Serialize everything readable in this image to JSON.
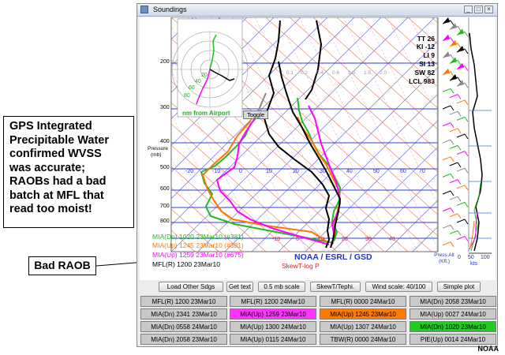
{
  "window": {
    "title": "Soundings"
  },
  "callout": {
    "lines": [
      "GPS Integrated",
      "Precipitable Water",
      "confirmed WVSS",
      "was accurate;",
      "RAOBs had a bad",
      "batch at MFL that",
      "read too moist!"
    ]
  },
  "annotation": {
    "bad_raob_label": "Bad RAOB"
  },
  "plot": {
    "pressure_label": "Pressure",
    "pressure_unit": "(mb)",
    "pressure_ticks": [
      "200",
      "300",
      "400",
      "500",
      "600",
      "700",
      "800"
    ],
    "temp_ticks": [
      "-20",
      "-10",
      "0",
      "10",
      "20",
      "30",
      "40",
      "50",
      "60",
      "70",
      "80"
    ],
    "temp_ticks_bottom": [
      "-10",
      "0",
      "10",
      "20",
      "30",
      "40"
    ],
    "mixing_ratio_labels": [
      "0.1",
      "0.2",
      "0.4",
      "0.6",
      "1.0",
      "1.5",
      "2.0"
    ],
    "branding": "NOAA / ESRL / GSD",
    "diagram_type": "SkewT-log P",
    "hodograph_caption": "nm from Airport",
    "hodograph_rings": [
      "20",
      "40",
      "60",
      "80"
    ],
    "toggle_label": "Toggle",
    "wind_axis_ticks": [
      "0",
      "50",
      "100"
    ],
    "wind_axis_unit": "kts",
    "press_alt_label": "Press Alt",
    "press_alt_unit": "(Kft.)"
  },
  "indices": [
    {
      "label": "TT 26"
    },
    {
      "label": "KI -12"
    },
    {
      "label": "LI 9"
    },
    {
      "label": "SI 13"
    },
    {
      "label": "SW 82"
    },
    {
      "label": "LCL 983"
    }
  ],
  "legend": [
    {
      "label": "MIA(Dn) 1020 23Mar10 (#381)",
      "color": "#22bb22"
    },
    {
      "label": "MIA(Up) 1245 23Mar10 (#381)",
      "color": "#ff7700"
    },
    {
      "label": "MIA(Up) 1259 23Mar10 (#675)",
      "color": "#ff00ff"
    },
    {
      "label": "MFL(R) 1200 23Mar10",
      "color": "#000000"
    }
  ],
  "toolbar": {
    "load_other": "Load Other Sdgs",
    "get_text": "Get text",
    "mb_scale": "0.5 mb scale",
    "skewt_tephi": "SkewT/Tephi.",
    "wind_scale": "Wind scale: 40/100",
    "simple_plot": "Simple plot"
  },
  "soundings_grid": [
    {
      "label": "MFL(R) 1200 23Mar10",
      "highlight": ""
    },
    {
      "label": "MFL(R) 1200 24Mar10",
      "highlight": ""
    },
    {
      "label": "MFL(R) 0000 24Mar10",
      "highlight": ""
    },
    {
      "label": "MIA(Dn) 2058 23Mar10",
      "highlight": ""
    },
    {
      "label": "MIA(Dn) 2341 23Mar10",
      "highlight": ""
    },
    {
      "label": "MIA(Up) 1259 23Mar10",
      "highlight": "#ff33ff"
    },
    {
      "label": "MIA(Up) 1245 23Mar10",
      "highlight": "#ff7a00"
    },
    {
      "label": "MIA(Up) 0027 24Mar10",
      "highlight": ""
    },
    {
      "label": "MIA(Dn) 0558 24Mar10",
      "highlight": ""
    },
    {
      "label": "MIA(Up) 1300 24Mar10",
      "highlight": ""
    },
    {
      "label": "MIA(Up) 1307 24Mar10",
      "highlight": ""
    },
    {
      "label": "MIA(Dn) 1020 23Mar10",
      "highlight": "#22cc22"
    },
    {
      "label": "MIA(Dn) 2058 23Mar10",
      "highlight": ""
    },
    {
      "label": "MIA(Up) 0115 24Mar10",
      "highlight": ""
    },
    {
      "label": "TBW(R) 0000 24Mar10",
      "highlight": ""
    },
    {
      "label": "PIE(Up) 0014 24Mar10",
      "highlight": ""
    }
  ],
  "footer": {
    "brand": "NOAA"
  }
}
